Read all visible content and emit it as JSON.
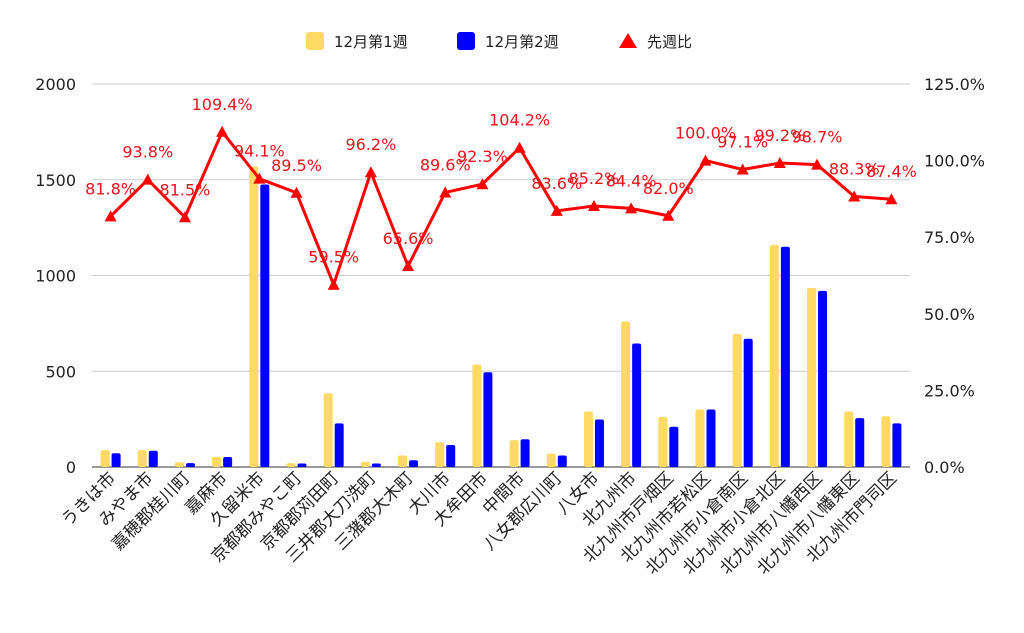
{
  "chart_data": {
    "type": "bar",
    "categories": [
      "うきは市",
      "みやま市",
      "嘉穂郡桂川町",
      "嘉麻市",
      "久留米市",
      "京都郡みやこ町",
      "京都郡苅田町",
      "三井郡大刀洗町",
      "三潴郡大木町",
      "大川市",
      "大牟田市",
      "中間市",
      "八女郡広川町",
      "八女市",
      "北九州市",
      "北九州市戸畑区",
      "北九州市若松区",
      "北九州市小倉南区",
      "北九州市小倉北区",
      "北九州市八幡西区",
      "北九州市八幡東区",
      "北九州市門司区"
    ],
    "series": [
      {
        "name": "12月第1週",
        "axis": "left",
        "color": "#FFD966",
        "values": [
          88,
          88,
          25,
          52,
          1570,
          20,
          385,
          28,
          60,
          130,
          535,
          140,
          70,
          290,
          760,
          262,
          300,
          695,
          1160,
          935,
          290,
          265
        ]
      },
      {
        "name": "12月第2週",
        "axis": "left",
        "color": "#0000FF",
        "values": [
          72,
          85,
          20,
          52,
          1475,
          18,
          228,
          18,
          35,
          115,
          495,
          145,
          60,
          248,
          645,
          210,
          300,
          670,
          1150,
          920,
          255,
          228
        ]
      },
      {
        "name": "先週比",
        "axis": "right",
        "type": "line",
        "color": "#FF0000",
        "values": [
          0.818,
          0.938,
          0.815,
          1.094,
          0.941,
          0.895,
          0.595,
          0.962,
          0.656,
          0.896,
          0.923,
          1.042,
          0.836,
          0.852,
          0.844,
          0.82,
          1.0,
          0.971,
          0.992,
          0.987,
          0.883,
          0.874
        ],
        "labels": [
          "81.8%",
          "93.8%",
          "81.5%",
          "109.4%",
          "94.1%",
          "89.5%",
          "59.5%",
          "96.2%",
          "65.6%",
          "89.6%",
          "92.3%",
          "104.2%",
          "83.6%",
          "85.2%",
          "84.4%",
          "82.0%",
          "100.0%",
          "97.1%",
          "99.2%",
          "98.7%",
          "88.3%",
          "87.4%"
        ]
      }
    ],
    "y_left": {
      "range": [
        0,
        2000
      ],
      "ticks": [
        "0",
        "500",
        "1000",
        "1500",
        "2000"
      ]
    },
    "y_right": {
      "range": [
        0,
        1.25
      ],
      "ticks": [
        "0.0%",
        "25.0%",
        "50.0%",
        "75.0%",
        "100.0%",
        "125.0%"
      ]
    },
    "legend": "top-center",
    "grid": true
  },
  "colors": {
    "grid": "#cccccc",
    "axis": "#333333",
    "label": "#e8141c"
  }
}
